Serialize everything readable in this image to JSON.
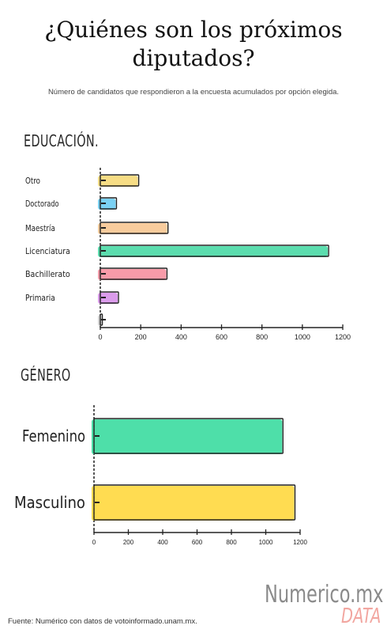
{
  "title": "¿Quiénes son los próximos diputados?",
  "subtitle": "Número de candidatos que respondieron a la encuesta acumulados por opción elegida.",
  "footer": "Fuente: Numérico con datos de votoinformado.unam.mx.",
  "brand": {
    "name": "Numerico.mx",
    "tag": "DATA"
  },
  "chart_data": [
    {
      "type": "bar",
      "orientation": "horizontal",
      "title": "EDUCACIÓN.",
      "categories": [
        "Otro",
        "Doctorado",
        "Maestría",
        "Licenciatura",
        "Bachillerato",
        "Primaria",
        ""
      ],
      "values": [
        190,
        80,
        335,
        1130,
        330,
        90,
        10
      ],
      "colors": [
        "#f6d770",
        "#63c9f2",
        "#f7c38c",
        "#3ed7a0",
        "#f78a9a",
        "#d58be8",
        "#cccccc"
      ],
      "xlim": [
        0,
        1200
      ],
      "xticks": [
        0,
        200,
        400,
        600,
        800,
        1000,
        1200
      ]
    },
    {
      "type": "bar",
      "orientation": "horizontal",
      "title": "GÉNERO",
      "categories": [
        "Femenino",
        "Masculino"
      ],
      "values": [
        1100,
        1170
      ],
      "colors": [
        "#2fd99a",
        "#ffd633"
      ],
      "xlim": [
        0,
        1200
      ],
      "xticks": [
        0,
        200,
        400,
        600,
        800,
        1000,
        1200
      ]
    }
  ]
}
